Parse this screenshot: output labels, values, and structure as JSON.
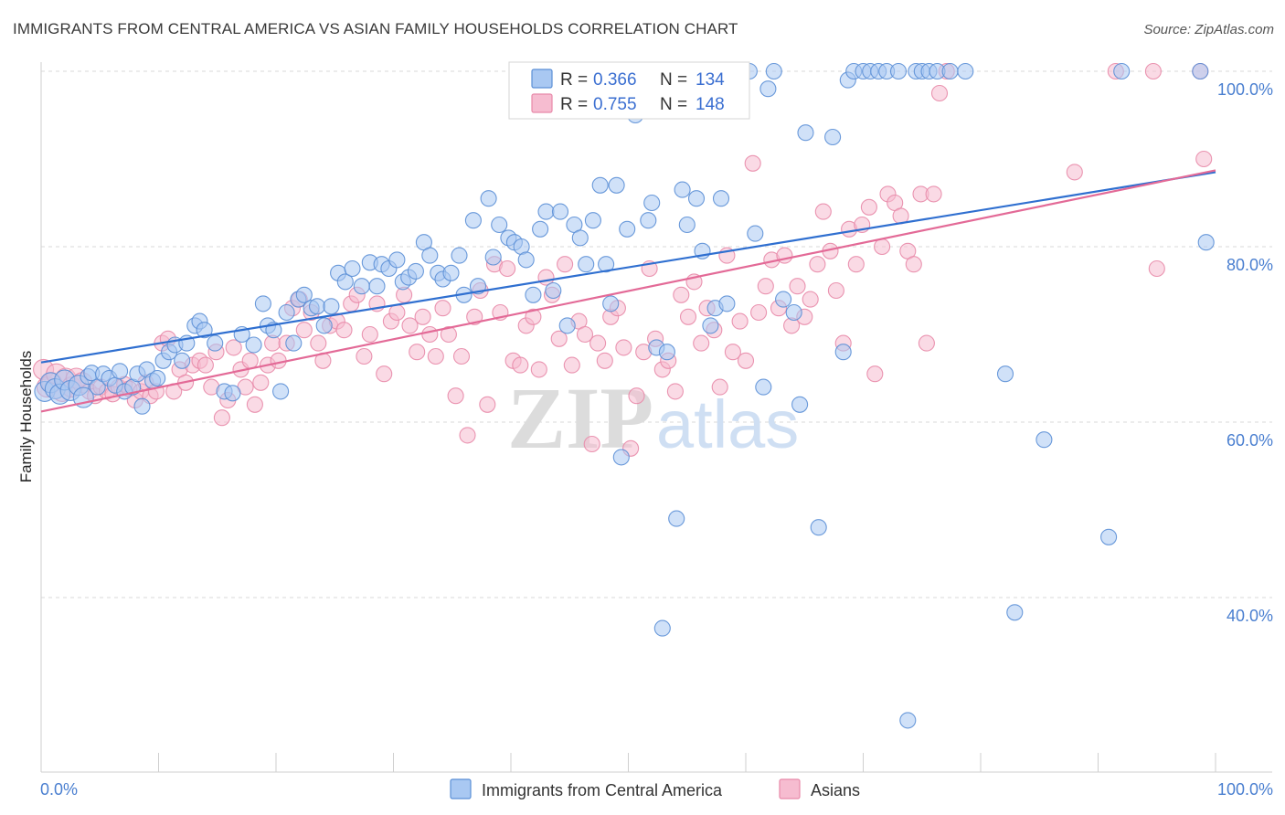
{
  "header": {
    "title": "IMMIGRANTS FROM CENTRAL AMERICA VS ASIAN FAMILY HOUSEHOLDS CORRELATION CHART",
    "source": "Source: ZipAtlas.com"
  },
  "watermark": {
    "zip": "ZIP",
    "atlas": "atlas"
  },
  "colors": {
    "blue_fill": "#a9c8f2",
    "blue_stroke": "#5b8fd6",
    "blue_line": "#2f6fd0",
    "pink_fill": "#f6bcd0",
    "pink_stroke": "#e889a9",
    "pink_line": "#e36a97",
    "grid": "#d9d9d9",
    "tick_text": "#4a7fd0"
  },
  "legend_top": {
    "rows": [
      {
        "r_label": "R = ",
        "r_value": "0.366",
        "n_label": "N = ",
        "n_value": "134"
      },
      {
        "r_label": "R = ",
        "r_value": "0.755",
        "n_label": "N = ",
        "n_value": "148"
      }
    ]
  },
  "chart_data": {
    "type": "scatter",
    "title": "IMMIGRANTS FROM CENTRAL AMERICA VS ASIAN FAMILY HOUSEHOLDS CORRELATION CHART",
    "xlabel": "",
    "ylabel": "Family Households",
    "xlim": [
      0,
      100
    ],
    "ylim": [
      20,
      100
    ],
    "x_tick_labels": [
      "0.0%",
      "100.0%"
    ],
    "y_ticks": [
      40,
      60,
      80,
      100
    ],
    "y_tick_labels": [
      "40.0%",
      "60.0%",
      "80.0%",
      "100.0%"
    ],
    "grid": true,
    "legend_position": "top-center",
    "series": [
      {
        "name": "Immigrants from Central America",
        "r": 0.366,
        "n": 134,
        "trend": [
          [
            0,
            66.8
          ],
          [
            100,
            88.5
          ]
        ],
        "points": [
          [
            0.3,
            63.5
          ],
          [
            0.8,
            64.5
          ],
          [
            1.2,
            63.8
          ],
          [
            1.6,
            63.2
          ],
          [
            2.0,
            64.8
          ],
          [
            2.5,
            63.6
          ],
          [
            3.2,
            64.2
          ],
          [
            3.6,
            62.8
          ],
          [
            4.0,
            65.2
          ],
          [
            4.3,
            65.6
          ],
          [
            4.8,
            64.0
          ],
          [
            5.3,
            65.5
          ],
          [
            5.8,
            65.0
          ],
          [
            6.3,
            64.2
          ],
          [
            6.7,
            65.8
          ],
          [
            7.1,
            63.5
          ],
          [
            7.8,
            64.0
          ],
          [
            8.2,
            65.5
          ],
          [
            8.6,
            61.8
          ],
          [
            9.0,
            66.0
          ],
          [
            9.5,
            64.7
          ],
          [
            9.9,
            65.0
          ],
          [
            10.4,
            67.0
          ],
          [
            10.9,
            68.0
          ],
          [
            11.4,
            68.8
          ],
          [
            12.0,
            67.0
          ],
          [
            12.4,
            69.0
          ],
          [
            13.1,
            71.0
          ],
          [
            13.5,
            71.5
          ],
          [
            13.9,
            70.5
          ],
          [
            14.8,
            69.0
          ],
          [
            15.6,
            63.5
          ],
          [
            16.3,
            63.3
          ],
          [
            17.1,
            70.0
          ],
          [
            18.1,
            68.8
          ],
          [
            18.9,
            73.5
          ],
          [
            19.3,
            71.0
          ],
          [
            19.8,
            70.5
          ],
          [
            20.4,
            63.5
          ],
          [
            20.9,
            72.5
          ],
          [
            21.5,
            69.0
          ],
          [
            21.9,
            74.0
          ],
          [
            22.4,
            74.5
          ],
          [
            23.0,
            73.0
          ],
          [
            23.5,
            73.2
          ],
          [
            24.1,
            71.0
          ],
          [
            24.7,
            73.2
          ],
          [
            25.3,
            77.0
          ],
          [
            25.9,
            76.0
          ],
          [
            26.5,
            77.5
          ],
          [
            27.3,
            75.5
          ],
          [
            28.0,
            78.2
          ],
          [
            28.6,
            75.5
          ],
          [
            29.0,
            78.0
          ],
          [
            29.6,
            77.5
          ],
          [
            30.3,
            78.5
          ],
          [
            30.8,
            76.0
          ],
          [
            31.3,
            76.5
          ],
          [
            31.9,
            77.2
          ],
          [
            32.6,
            80.5
          ],
          [
            33.1,
            79.0
          ],
          [
            33.8,
            77.0
          ],
          [
            34.2,
            76.3
          ],
          [
            34.9,
            77.0
          ],
          [
            35.6,
            79.0
          ],
          [
            36.0,
            74.5
          ],
          [
            36.8,
            83.0
          ],
          [
            37.2,
            75.5
          ],
          [
            38.1,
            85.5
          ],
          [
            38.5,
            78.8
          ],
          [
            39.0,
            82.5
          ],
          [
            39.8,
            81.0
          ],
          [
            40.3,
            80.5
          ],
          [
            40.9,
            80.0
          ],
          [
            41.3,
            78.5
          ],
          [
            41.9,
            74.5
          ],
          [
            42.5,
            82.0
          ],
          [
            43.0,
            84.0
          ],
          [
            43.6,
            75.0
          ],
          [
            44.2,
            84.0
          ],
          [
            44.8,
            71.0
          ],
          [
            45.4,
            82.5
          ],
          [
            45.9,
            81.0
          ],
          [
            46.4,
            78.0
          ],
          [
            47.0,
            83.0
          ],
          [
            47.6,
            87.0
          ],
          [
            48.1,
            78.0
          ],
          [
            48.5,
            73.5
          ],
          [
            49.0,
            87.0
          ],
          [
            49.4,
            56.0
          ],
          [
            49.9,
            82.0
          ],
          [
            50.6,
            95.0
          ],
          [
            51.0,
            96.0
          ],
          [
            51.7,
            83.0
          ],
          [
            52.0,
            85.0
          ],
          [
            52.4,
            68.5
          ],
          [
            52.9,
            36.5
          ],
          [
            53.3,
            68.0
          ],
          [
            54.1,
            49.0
          ],
          [
            54.6,
            86.5
          ],
          [
            55.0,
            82.5
          ],
          [
            55.8,
            85.5
          ],
          [
            56.3,
            79.5
          ],
          [
            57.0,
            71.0
          ],
          [
            57.4,
            73.0
          ],
          [
            57.9,
            85.5
          ],
          [
            58.4,
            73.5
          ],
          [
            59.0,
            100.0
          ],
          [
            59.6,
            100.0
          ],
          [
            60.3,
            100.0
          ],
          [
            60.8,
            81.5
          ],
          [
            61.5,
            64.0
          ],
          [
            61.9,
            98.0
          ],
          [
            62.4,
            100.0
          ],
          [
            63.2,
            74.0
          ],
          [
            64.1,
            72.5
          ],
          [
            64.6,
            62.0
          ],
          [
            65.1,
            93.0
          ],
          [
            66.2,
            48.0
          ],
          [
            67.4,
            92.5
          ],
          [
            68.3,
            68.0
          ],
          [
            68.7,
            99.0
          ],
          [
            69.2,
            100.0
          ],
          [
            70.0,
            100.0
          ],
          [
            70.6,
            100.0
          ],
          [
            71.3,
            100.0
          ],
          [
            72.0,
            100.0
          ],
          [
            73.0,
            100.0
          ],
          [
            73.8,
            26.0
          ],
          [
            74.5,
            100.0
          ],
          [
            75.0,
            100.0
          ],
          [
            75.6,
            100.0
          ],
          [
            76.3,
            100.0
          ],
          [
            77.4,
            100.0
          ],
          [
            78.7,
            100.0
          ],
          [
            82.1,
            65.5
          ],
          [
            82.9,
            38.3
          ],
          [
            85.4,
            58.0
          ],
          [
            90.9,
            46.9
          ],
          [
            92.0,
            100.0
          ],
          [
            98.7,
            100.0
          ],
          [
            99.2,
            80.5
          ]
        ]
      },
      {
        "name": "Asians",
        "r": 0.755,
        "n": 148,
        "trend": [
          [
            0,
            61.2
          ],
          [
            100,
            88.7
          ]
        ],
        "points": [
          [
            0.2,
            66.0
          ],
          [
            0.5,
            64.0
          ],
          [
            0.9,
            64.5
          ],
          [
            1.3,
            65.5
          ],
          [
            1.8,
            63.5
          ],
          [
            2.1,
            65.0
          ],
          [
            2.6,
            64.0
          ],
          [
            3.0,
            65.0
          ],
          [
            3.5,
            64.5
          ],
          [
            4.1,
            63.5
          ],
          [
            4.6,
            63.0
          ],
          [
            5.1,
            64.0
          ],
          [
            5.6,
            63.5
          ],
          [
            6.1,
            63.2
          ],
          [
            6.6,
            64.0
          ],
          [
            7.1,
            64.3
          ],
          [
            7.5,
            63.8
          ],
          [
            8.0,
            62.5
          ],
          [
            8.5,
            63.5
          ],
          [
            8.9,
            64.5
          ],
          [
            9.3,
            63.0
          ],
          [
            9.8,
            63.5
          ],
          [
            10.3,
            69.0
          ],
          [
            10.8,
            69.5
          ],
          [
            11.3,
            63.5
          ],
          [
            11.8,
            66.0
          ],
          [
            12.3,
            64.5
          ],
          [
            12.9,
            66.5
          ],
          [
            13.5,
            67.0
          ],
          [
            14.0,
            66.5
          ],
          [
            14.5,
            64.0
          ],
          [
            14.9,
            68.0
          ],
          [
            15.4,
            60.5
          ],
          [
            15.9,
            62.5
          ],
          [
            16.4,
            68.5
          ],
          [
            17.0,
            66.0
          ],
          [
            17.4,
            64.0
          ],
          [
            17.8,
            67.0
          ],
          [
            18.2,
            62.0
          ],
          [
            18.7,
            64.5
          ],
          [
            19.3,
            66.5
          ],
          [
            19.7,
            69.0
          ],
          [
            20.2,
            67.0
          ],
          [
            20.9,
            69.0
          ],
          [
            21.4,
            73.0
          ],
          [
            22.0,
            74.0
          ],
          [
            22.4,
            70.5
          ],
          [
            23.0,
            72.5
          ],
          [
            23.6,
            69.0
          ],
          [
            24.0,
            67.0
          ],
          [
            24.6,
            71.0
          ],
          [
            25.2,
            71.5
          ],
          [
            25.8,
            70.5
          ],
          [
            26.4,
            73.5
          ],
          [
            26.9,
            74.5
          ],
          [
            27.5,
            67.5
          ],
          [
            28.0,
            70.0
          ],
          [
            28.6,
            73.5
          ],
          [
            29.2,
            65.5
          ],
          [
            29.8,
            71.5
          ],
          [
            30.3,
            72.5
          ],
          [
            30.9,
            74.5
          ],
          [
            31.4,
            71.0
          ],
          [
            32.0,
            68.0
          ],
          [
            32.5,
            72.0
          ],
          [
            33.1,
            70.0
          ],
          [
            33.6,
            67.5
          ],
          [
            34.2,
            73.0
          ],
          [
            34.7,
            70.0
          ],
          [
            35.3,
            63.0
          ],
          [
            35.8,
            67.5
          ],
          [
            36.3,
            58.5
          ],
          [
            36.9,
            72.0
          ],
          [
            37.4,
            75.0
          ],
          [
            38.0,
            62.0
          ],
          [
            38.6,
            78.0
          ],
          [
            39.1,
            72.5
          ],
          [
            39.7,
            77.5
          ],
          [
            40.2,
            67.0
          ],
          [
            40.8,
            66.5
          ],
          [
            41.3,
            71.0
          ],
          [
            41.9,
            72.0
          ],
          [
            42.4,
            66.0
          ],
          [
            43.0,
            76.5
          ],
          [
            43.5,
            74.5
          ],
          [
            44.1,
            69.5
          ],
          [
            44.6,
            78.0
          ],
          [
            45.2,
            66.5
          ],
          [
            45.8,
            71.5
          ],
          [
            46.3,
            70.0
          ],
          [
            46.9,
            57.5
          ],
          [
            47.4,
            69.0
          ],
          [
            48.0,
            67.0
          ],
          [
            48.5,
            72.0
          ],
          [
            49.1,
            73.0
          ],
          [
            49.6,
            68.5
          ],
          [
            50.2,
            57.0
          ],
          [
            50.7,
            63.0
          ],
          [
            51.3,
            68.0
          ],
          [
            51.8,
            77.5
          ],
          [
            52.3,
            69.5
          ],
          [
            52.9,
            66.0
          ],
          [
            53.4,
            67.0
          ],
          [
            54.0,
            63.5
          ],
          [
            54.5,
            74.5
          ],
          [
            55.1,
            72.0
          ],
          [
            55.6,
            76.0
          ],
          [
            56.2,
            69.0
          ],
          [
            56.7,
            73.0
          ],
          [
            57.3,
            70.5
          ],
          [
            57.8,
            64.0
          ],
          [
            58.4,
            79.0
          ],
          [
            58.9,
            68.0
          ],
          [
            59.5,
            71.5
          ],
          [
            60.0,
            67.0
          ],
          [
            60.6,
            89.5
          ],
          [
            61.1,
            72.5
          ],
          [
            61.7,
            75.5
          ],
          [
            62.2,
            78.5
          ],
          [
            62.8,
            73.0
          ],
          [
            63.3,
            79.0
          ],
          [
            63.9,
            71.0
          ],
          [
            64.4,
            75.5
          ],
          [
            65.0,
            72.0
          ],
          [
            65.5,
            74.0
          ],
          [
            66.1,
            78.0
          ],
          [
            66.6,
            84.0
          ],
          [
            67.2,
            79.5
          ],
          [
            67.7,
            75.0
          ],
          [
            68.3,
            69.0
          ],
          [
            68.8,
            82.0
          ],
          [
            69.4,
            78.0
          ],
          [
            69.9,
            82.5
          ],
          [
            70.5,
            84.5
          ],
          [
            71.0,
            65.5
          ],
          [
            71.6,
            80.0
          ],
          [
            72.1,
            86.0
          ],
          [
            72.7,
            85.0
          ],
          [
            73.2,
            83.5
          ],
          [
            73.8,
            79.5
          ],
          [
            74.3,
            78.0
          ],
          [
            74.9,
            86.0
          ],
          [
            75.4,
            69.0
          ],
          [
            76.0,
            86.0
          ],
          [
            76.5,
            97.5
          ],
          [
            77.1,
            100.0
          ],
          [
            88.0,
            88.5
          ],
          [
            91.5,
            100.0
          ],
          [
            94.7,
            100.0
          ],
          [
            95.0,
            77.5
          ],
          [
            98.7,
            100.0
          ],
          [
            99.0,
            90.0
          ]
        ]
      }
    ]
  },
  "legend_bottom": {
    "items": [
      {
        "label": "Immigrants from Central America"
      },
      {
        "label": "Asians"
      }
    ]
  }
}
